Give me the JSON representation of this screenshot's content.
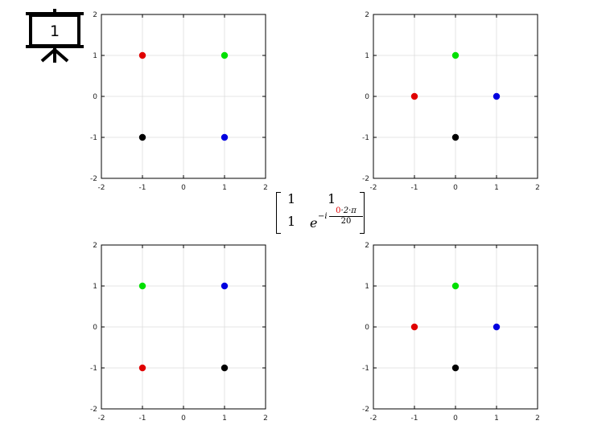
{
  "slide_badge": {
    "number": "1",
    "icon": "presentation-board-icon"
  },
  "matrix": {
    "r1c1": "1",
    "r1c2": "1",
    "r2c1": "1",
    "r2c2_base": "e",
    "exponent_prefix": "−i",
    "exponent_k": "0",
    "exponent_rest": "·2·π",
    "exponent_denominator": "20",
    "highlight_color": "#e00000"
  },
  "chart_data": [
    {
      "type": "scatter",
      "xlim": [
        -2,
        2
      ],
      "ylim": [
        -2,
        2
      ],
      "xticks": [
        "-2",
        "-1",
        "0",
        "1",
        "2"
      ],
      "yticks": [
        "-2",
        "-1",
        "0",
        "1",
        "2"
      ],
      "grid": true,
      "points": [
        {
          "x": -1,
          "y": 1,
          "color": "#e00000"
        },
        {
          "x": 1,
          "y": 1,
          "color": "#00e000"
        },
        {
          "x": -1,
          "y": -1,
          "color": "#000000"
        },
        {
          "x": 1,
          "y": -1,
          "color": "#0000e0"
        }
      ]
    },
    {
      "type": "scatter",
      "xlim": [
        -2,
        2
      ],
      "ylim": [
        -2,
        2
      ],
      "xticks": [
        "-2",
        "-1",
        "0",
        "1",
        "2"
      ],
      "yticks": [
        "-2",
        "-1",
        "0",
        "1",
        "2"
      ],
      "grid": true,
      "points": [
        {
          "x": -1,
          "y": 0,
          "color": "#e00000"
        },
        {
          "x": 0,
          "y": 1,
          "color": "#00e000"
        },
        {
          "x": 0,
          "y": -1,
          "color": "#000000"
        },
        {
          "x": 1,
          "y": 0,
          "color": "#0000e0"
        }
      ]
    },
    {
      "type": "scatter",
      "xlim": [
        -2,
        2
      ],
      "ylim": [
        -2,
        2
      ],
      "xticks": [
        "-2",
        "-1",
        "0",
        "1",
        "2"
      ],
      "yticks": [
        "-2",
        "-1",
        "0",
        "1",
        "2"
      ],
      "grid": true,
      "points": [
        {
          "x": -1,
          "y": -1,
          "color": "#e00000"
        },
        {
          "x": -1,
          "y": 1,
          "color": "#00e000"
        },
        {
          "x": 1,
          "y": -1,
          "color": "#000000"
        },
        {
          "x": 1,
          "y": 1,
          "color": "#0000e0"
        }
      ]
    },
    {
      "type": "scatter",
      "xlim": [
        -2,
        2
      ],
      "ylim": [
        -2,
        2
      ],
      "xticks": [
        "-2",
        "-1",
        "0",
        "1",
        "2"
      ],
      "yticks": [
        "-2",
        "-1",
        "0",
        "1",
        "2"
      ],
      "grid": true,
      "points": [
        {
          "x": -1,
          "y": 0,
          "color": "#e00000"
        },
        {
          "x": 0,
          "y": 1,
          "color": "#00e000"
        },
        {
          "x": 0,
          "y": -1,
          "color": "#000000"
        },
        {
          "x": 1,
          "y": 0,
          "color": "#0000e0"
        }
      ]
    }
  ]
}
